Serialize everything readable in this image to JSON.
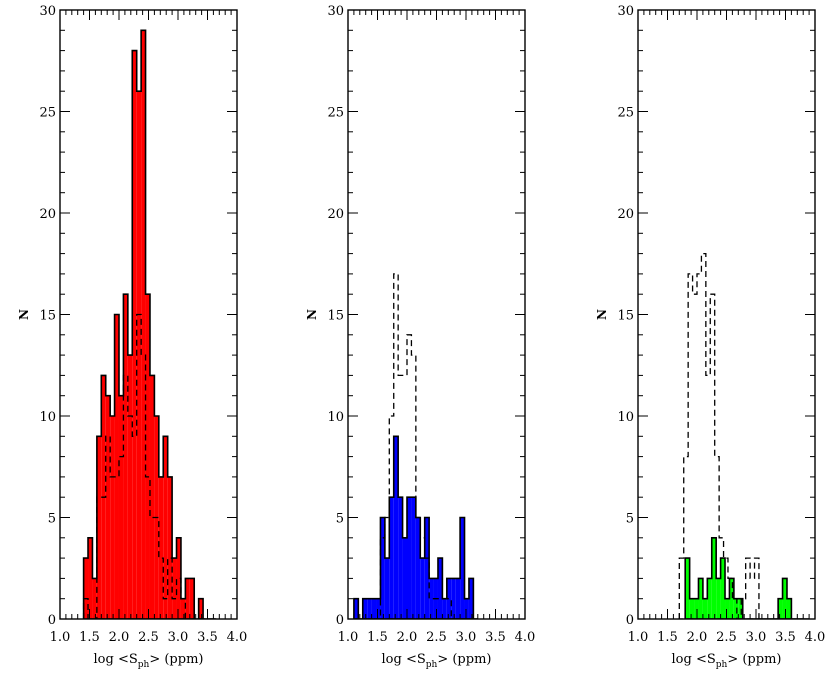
{
  "chart_data": [
    {
      "type": "histogram",
      "xlabel_main": "log <S",
      "xlabel_sub": "ph",
      "xlabel_tail": "> (ppm)",
      "ylabel": "N",
      "xlim": [
        1.0,
        4.0
      ],
      "ylim": [
        0,
        30
      ],
      "xticks": [
        "1.0",
        "1.5",
        "2.0",
        "2.5",
        "3.0",
        "3.5",
        "4.0"
      ],
      "yticks": [
        "0",
        "5",
        "10",
        "15",
        "20",
        "25",
        "30"
      ],
      "bin_width": 0.075,
      "filled_color": "#ff0000",
      "filled": {
        "start": 1.4,
        "counts": [
          3,
          4,
          2,
          9,
          12,
          11,
          10,
          15,
          11,
          16,
          13,
          28,
          26,
          29,
          16,
          12,
          10,
          7,
          9,
          7,
          3,
          4,
          1,
          2,
          2,
          0,
          1,
          0,
          0,
          0
        ]
      },
      "outline": {
        "start": 1.4,
        "counts": [
          1,
          0,
          0,
          6,
          6,
          9,
          7,
          7,
          8,
          12,
          10,
          9,
          15,
          13,
          7,
          5,
          5,
          3,
          1,
          3,
          1,
          2,
          1,
          0,
          0,
          0,
          0,
          0,
          0,
          0
        ]
      }
    },
    {
      "type": "histogram",
      "xlabel_main": "log <S",
      "xlabel_sub": "ph",
      "xlabel_tail": "> (ppm)",
      "ylabel": "N",
      "xlim": [
        1.0,
        4.0
      ],
      "ylim": [
        0,
        30
      ],
      "xticks": [
        "1.0",
        "1.5",
        "2.0",
        "2.5",
        "3.0",
        "3.5",
        "4.0"
      ],
      "yticks": [
        "0",
        "5",
        "10",
        "15",
        "20",
        "25",
        "30"
      ],
      "bin_width": 0.075,
      "filled_color": "#0000ff",
      "filled": {
        "start": 1.1,
        "counts": [
          1,
          0,
          1,
          1,
          1,
          1,
          5,
          3,
          6,
          9,
          6,
          4,
          6,
          6,
          5,
          3,
          5,
          2,
          2,
          3,
          1,
          2,
          2,
          2,
          5,
          1,
          2,
          0
        ]
      },
      "outline": {
        "start": 1.1,
        "counts": [
          0,
          0,
          0,
          0,
          0,
          0,
          4,
          5,
          10,
          17,
          12,
          12,
          14,
          13,
          5,
          4,
          3,
          1,
          1,
          1,
          1,
          1,
          0,
          0,
          0,
          0,
          0,
          0
        ]
      }
    },
    {
      "type": "histogram",
      "xlabel_main": "log <S",
      "xlabel_sub": "ph",
      "xlabel_tail": "> (ppm)",
      "ylabel": "N",
      "xlim": [
        1.0,
        4.0
      ],
      "ylim": [
        0,
        30
      ],
      "xticks": [
        "1.0",
        "1.5",
        "2.0",
        "2.5",
        "3.0",
        "3.5",
        "4.0"
      ],
      "yticks": [
        "0",
        "5",
        "10",
        "15",
        "20",
        "25",
        "30"
      ],
      "bin_width": 0.075,
      "filled_color": "#00ff00",
      "filled": {
        "start": 1.8,
        "counts": [
          3,
          1,
          1,
          2,
          1,
          2,
          4,
          2,
          3,
          1,
          2,
          1,
          1,
          0,
          0,
          0,
          0,
          0,
          0,
          0,
          0,
          1,
          2,
          1,
          0,
          0,
          0,
          0
        ]
      },
      "outline": {
        "start": 1.7,
        "counts": [
          3,
          8,
          17,
          16,
          17,
          18,
          12,
          16,
          8,
          4,
          3,
          2,
          1,
          0,
          1,
          3,
          2,
          3,
          0,
          0,
          0,
          0,
          0,
          0,
          0,
          0,
          0,
          0
        ]
      }
    }
  ]
}
